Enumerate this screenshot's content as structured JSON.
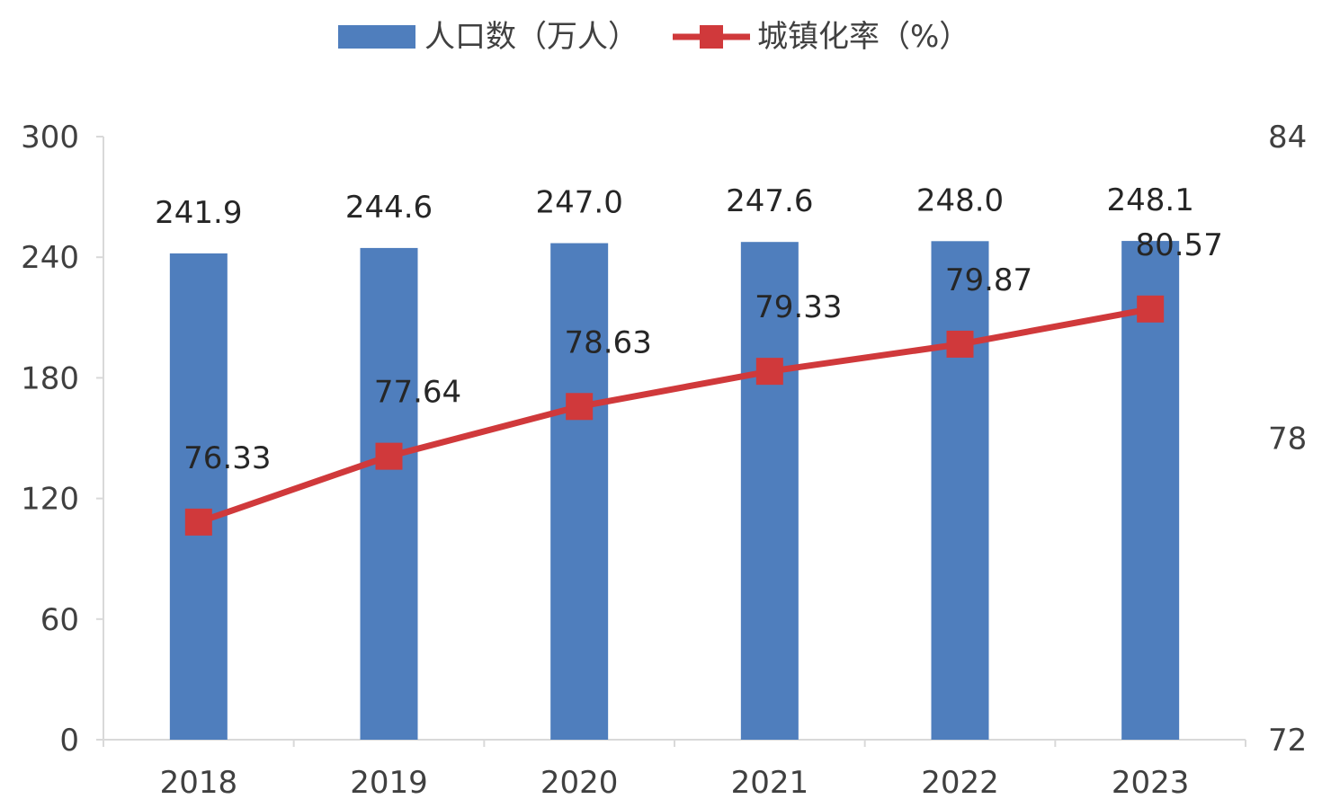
{
  "chart_data": {
    "type": "bar",
    "categories": [
      "2018",
      "2019",
      "2020",
      "2021",
      "2022",
      "2023"
    ],
    "series": [
      {
        "name": "人口数（万人）",
        "type": "bar",
        "axis": "left",
        "color": "#4F7EBD",
        "values": [
          241.9,
          244.6,
          247.0,
          247.6,
          248.0,
          248.1
        ],
        "value_labels": [
          "241.9",
          "244.6",
          "247.0",
          "247.6",
          "248.0",
          "248.1"
        ]
      },
      {
        "name": "城镇化率（%）",
        "type": "line",
        "axis": "right",
        "color": "#D0393B",
        "marker": "square",
        "values": [
          76.33,
          77.64,
          78.63,
          79.33,
          79.87,
          80.57
        ],
        "value_labels": [
          "76.33",
          "77.64",
          "78.63",
          "79.33",
          "79.87",
          "80.57"
        ]
      }
    ],
    "y_left": {
      "min": 0,
      "max": 300,
      "ticks": [
        "0",
        "60",
        "120",
        "180",
        "240",
        "300"
      ]
    },
    "y_right": {
      "min": 72,
      "max": 84,
      "ticks": [
        "72",
        "78",
        "84"
      ]
    },
    "grid": false,
    "legend_position": "top-center"
  }
}
